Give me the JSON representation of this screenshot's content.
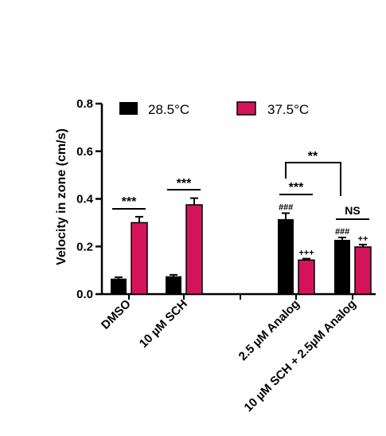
{
  "chart_data": {
    "type": "bar",
    "ylabel": "Velocity in zone (cm/s)",
    "ylim": [
      0,
      0.8
    ],
    "yticks": [
      "0.0",
      "0.2",
      "0.4",
      "0.6",
      "0.8"
    ],
    "categories": [
      "DMSO",
      "10 µM SCH",
      "2.5 µM Analog",
      "10 µM SCH + 2.5µM Analog"
    ],
    "series": [
      {
        "name": "28.5°C",
        "color": "#000000",
        "values": [
          0.065,
          0.075,
          0.315,
          0.228
        ],
        "errors": [
          0.006,
          0.006,
          0.025,
          0.01
        ]
      },
      {
        "name": "37.5°C",
        "color": "#d4145a",
        "values": [
          0.3,
          0.375,
          0.143,
          0.198
        ],
        "errors": [
          0.025,
          0.028,
          0.006,
          0.01
        ]
      }
    ],
    "annotations": {
      "within_group": [
        "***",
        "***",
        "***",
        "NS"
      ],
      "above_28": [
        "",
        "",
        "###",
        "###"
      ],
      "above_37": [
        "",
        "",
        "+++",
        "++"
      ],
      "between_groups": "**"
    },
    "legend_position": "top"
  }
}
